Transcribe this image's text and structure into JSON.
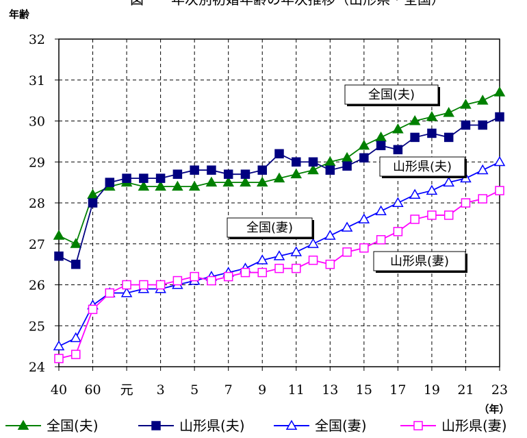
{
  "chart_data": {
    "type": "line",
    "title": "図　　年次別初婚年齢の年次推移（山形県・全国）",
    "ylabel": "年齢",
    "xunit": "（年）",
    "ylim": [
      24,
      32
    ],
    "yticks": [
      24,
      25,
      26,
      27,
      28,
      29,
      30,
      31,
      32
    ],
    "categories": [
      "40",
      "50",
      "60",
      "63",
      "元",
      "2",
      "3",
      "4",
      "5",
      "6",
      "7",
      "8",
      "9",
      "10",
      "11",
      "12",
      "13",
      "14",
      "15",
      "16",
      "17",
      "18",
      "19",
      "20",
      "21",
      "22",
      "23"
    ],
    "shown_tick_labels": [
      "40",
      "60",
      "元",
      "3",
      "5",
      "7",
      "9",
      "11",
      "13",
      "15",
      "17",
      "19",
      "21",
      "23"
    ],
    "grid": true,
    "series": [
      {
        "name": "全国(夫)",
        "color": "#008000",
        "marker": "triangle-filled",
        "values": [
          27.2,
          27.0,
          28.2,
          28.4,
          28.5,
          28.4,
          28.4,
          28.4,
          28.4,
          28.5,
          28.5,
          28.5,
          28.5,
          28.6,
          28.7,
          28.8,
          29.0,
          29.1,
          29.4,
          29.6,
          29.8,
          30.0,
          30.1,
          30.2,
          30.4,
          30.5,
          30.7
        ]
      },
      {
        "name": "山形県(夫)",
        "color": "#000080",
        "marker": "square-filled",
        "values": [
          26.7,
          26.5,
          28.0,
          28.5,
          28.6,
          28.6,
          28.6,
          28.7,
          28.8,
          28.8,
          28.7,
          28.7,
          28.8,
          29.2,
          29.0,
          29.0,
          28.8,
          28.9,
          29.1,
          29.4,
          29.3,
          29.6,
          29.7,
          29.6,
          29.9,
          29.9,
          30.1
        ]
      },
      {
        "name": "全国(妻)",
        "color": "#0000ff",
        "marker": "triangle-open",
        "values": [
          24.5,
          24.7,
          25.5,
          25.8,
          25.8,
          25.9,
          25.9,
          26.0,
          26.1,
          26.2,
          26.3,
          26.4,
          26.6,
          26.7,
          26.8,
          27.0,
          27.2,
          27.4,
          27.6,
          27.8,
          28.0,
          28.2,
          28.3,
          28.5,
          28.6,
          28.8,
          29.0
        ]
      },
      {
        "name": "山形県(妻)",
        "color": "#ff00ff",
        "marker": "square-open",
        "values": [
          24.2,
          24.3,
          25.4,
          25.8,
          26.0,
          26.0,
          26.0,
          26.1,
          26.2,
          26.1,
          26.2,
          26.3,
          26.3,
          26.4,
          26.4,
          26.6,
          26.5,
          26.8,
          26.9,
          27.1,
          27.3,
          27.6,
          27.7,
          27.7,
          28.0,
          28.1,
          28.3
        ]
      }
    ],
    "annotations": [
      {
        "text": "全国(夫)",
        "series": 0
      },
      {
        "text": "山形県(夫)",
        "series": 1
      },
      {
        "text": "全国(妻)",
        "series": 2
      },
      {
        "text": "山形県(妻)",
        "series": 3
      }
    ],
    "legend": {
      "position": "bottom"
    }
  }
}
